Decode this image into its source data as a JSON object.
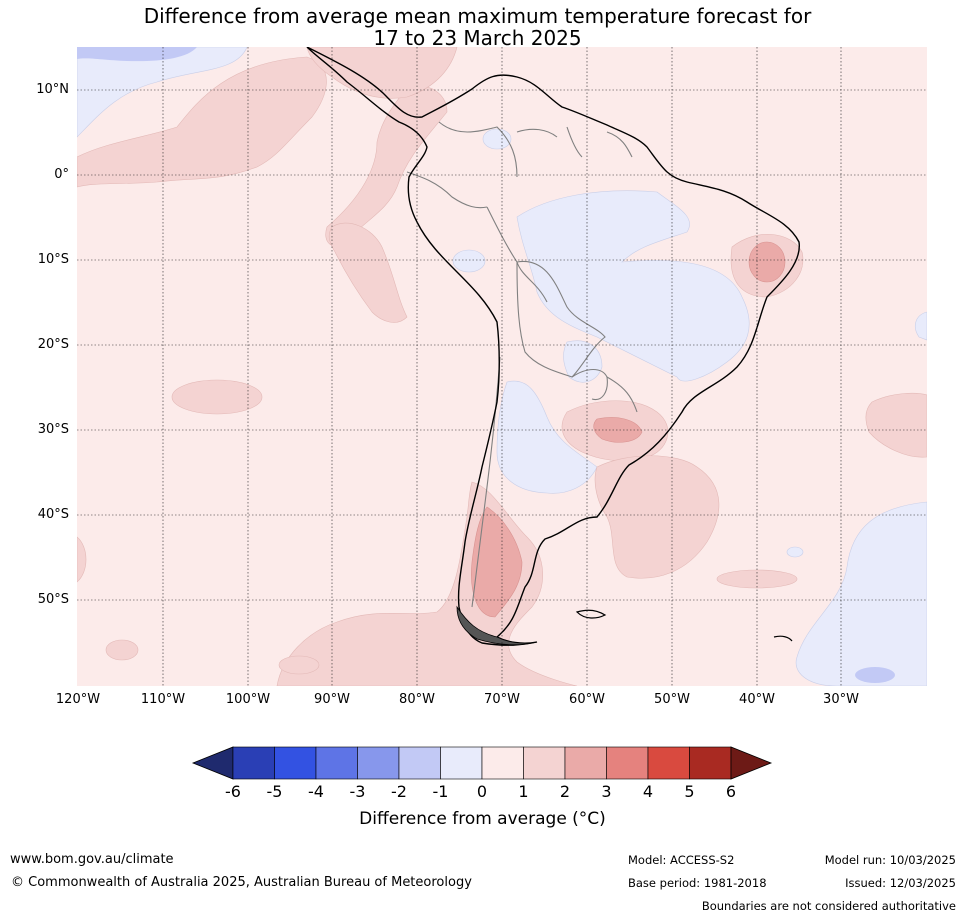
{
  "title": {
    "line1": "Difference from average mean maximum temperature forecast for",
    "line2": "17 to 23 March 2025"
  },
  "axes": {
    "latitude_labels": [
      "10°N",
      "0°",
      "10°S",
      "20°S",
      "30°S",
      "40°S",
      "50°S"
    ],
    "longitude_labels": [
      "120°W",
      "110°W",
      "100°W",
      "90°W",
      "80°W",
      "70°W",
      "60°W",
      "50°W",
      "40°W",
      "30°W"
    ]
  },
  "colorbar": {
    "title": "Difference from average (°C)",
    "tick_labels": [
      "-6",
      "-5",
      "-4",
      "-3",
      "-2",
      "-1",
      "0",
      "1",
      "2",
      "3",
      "4",
      "5",
      "6"
    ],
    "colors": [
      "#1f2a6e",
      "#2a3fb5",
      "#3352e2",
      "#5e74e6",
      "#8797ec",
      "#c2c9f5",
      "#e8ebfb",
      "#fcebea",
      "#f4d3d2",
      "#eaaaa8",
      "#e5827e",
      "#d94a3f",
      "#a92a22",
      "#6d1a16"
    ]
  },
  "footer": {
    "website": "www.bom.gov.au/climate",
    "copyright": "© Commonwealth of Australia 2025, Australian Bureau of Meteorology",
    "model": "Model: ACCESS-S2",
    "base_period": "Base period: 1981-2018",
    "model_run": "Model run: 10/03/2025",
    "issued": "Issued: 12/03/2025",
    "disclaimer": "Boundaries are not considered authoritative"
  }
}
